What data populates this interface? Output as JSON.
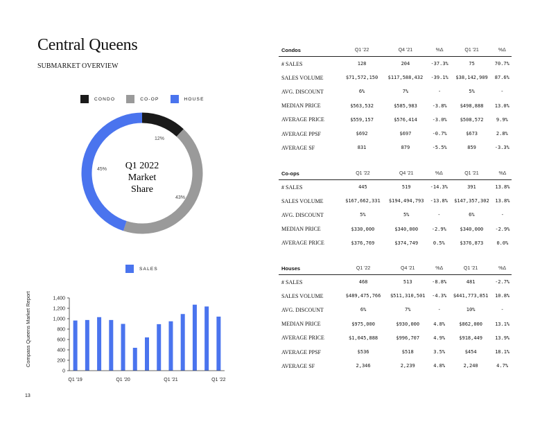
{
  "header": {
    "title": "Central Queens",
    "subtitle": "SUBMARKET OVERVIEW"
  },
  "colors": {
    "condo": "#1a1a1a",
    "coop": "#9a9a9a",
    "house": "#4a74ee",
    "bar": "#4a74ee"
  },
  "donut": {
    "legend": [
      "CONDO",
      "CO-OP",
      "HOUSE"
    ],
    "center_lines": [
      "Q1 2022",
      "Market",
      "Share"
    ],
    "labels": {
      "condo": "12%",
      "coop": "43%",
      "house": "45%"
    }
  },
  "bars": {
    "legend": "SALES"
  },
  "footer": {
    "vertical_label": "Compass   Queens Market Report",
    "page": "13"
  },
  "tables": [
    {
      "name": "Condos",
      "columns": [
        "Q1 '22",
        "Q4 '21",
        "%Δ",
        "Q1 '21",
        "%Δ"
      ],
      "rows": [
        [
          "# SALES",
          "128",
          "204",
          "-37.3%",
          "75",
          "70.7%"
        ],
        [
          "SALES VOLUME",
          "$71,572,150",
          "$117,588,432",
          "-39.1%",
          "$38,142,909",
          "87.6%"
        ],
        [
          "AVG. DISCOUNT",
          "6%",
          "7%",
          "-",
          "5%",
          "-"
        ],
        [
          "MEDIAN PRICE",
          "$563,532",
          "$585,983",
          "-3.8%",
          "$498,888",
          "13.0%"
        ],
        [
          "AVERAGE PRICE",
          "$559,157",
          "$576,414",
          "-3.0%",
          "$508,572",
          "9.9%"
        ],
        [
          "AVERAGE PPSF",
          "$692",
          "$697",
          "-0.7%",
          "$673",
          "2.8%"
        ],
        [
          "AVERAGE SF",
          "831",
          "879",
          "-5.5%",
          "859",
          "-3.3%"
        ]
      ]
    },
    {
      "name": "Co-ops",
      "columns": [
        "Q1 '22",
        "Q4 '21",
        "%Δ",
        "Q1 '21",
        "%Δ"
      ],
      "rows": [
        [
          "# SALES",
          "445",
          "519",
          "-14.3%",
          "391",
          "13.8%"
        ],
        [
          "SALES VOLUME",
          "$167,662,331",
          "$194,494,793",
          "-13.8%",
          "$147,357,302",
          "13.8%"
        ],
        [
          "AVG. DISCOUNT",
          "5%",
          "5%",
          "-",
          "6%",
          "-"
        ],
        [
          "MEDIAN PRICE",
          "$330,000",
          "$340,000",
          "-2.9%",
          "$340,000",
          "-2.9%"
        ],
        [
          "AVERAGE PRICE",
          "$376,769",
          "$374,749",
          "0.5%",
          "$376,873",
          "0.0%"
        ]
      ]
    },
    {
      "name": "Houses",
      "columns": [
        "Q1 '22",
        "Q4 '21",
        "%Δ",
        "Q1 '21",
        "%Δ"
      ],
      "rows": [
        [
          "# SALES",
          "468",
          "513",
          "-8.8%",
          "481",
          "-2.7%"
        ],
        [
          "SALES VOLUME",
          "$489,475,766",
          "$511,310,501",
          "-4.3%",
          "$441,773,851",
          "10.8%"
        ],
        [
          "AVG. DISCOUNT",
          "6%",
          "7%",
          "-",
          "10%",
          "-"
        ],
        [
          "MEDIAN PRICE",
          "$975,000",
          "$930,000",
          "4.8%",
          "$862,000",
          "13.1%"
        ],
        [
          "AVERAGE PRICE",
          "$1,045,888",
          "$996,707",
          "4.9%",
          "$918,449",
          "13.9%"
        ],
        [
          "AVERAGE PPSF",
          "$536",
          "$518",
          "3.5%",
          "$454",
          "18.1%"
        ],
        [
          "AVERAGE SF",
          "2,346",
          "2,239",
          "4.8%",
          "2,240",
          "4.7%"
        ]
      ]
    }
  ],
  "chart_data": [
    {
      "type": "pie",
      "title": "Q1 2022 Market Share",
      "categories": [
        "CONDO",
        "CO-OP",
        "HOUSE"
      ],
      "values": [
        12,
        43,
        45
      ]
    },
    {
      "type": "bar",
      "title": "",
      "series": [
        {
          "name": "SALES",
          "values": [
            965,
            975,
            1030,
            975,
            900,
            440,
            640,
            895,
            950,
            1090,
            1270,
            1235,
            1040
          ]
        }
      ],
      "categories": [
        "Q1 '19",
        "Q2 '19",
        "Q3 '19",
        "Q4 '19",
        "Q1 '20",
        "Q2 '20",
        "Q3 '20",
        "Q4 '20",
        "Q1 '21",
        "Q2 '21",
        "Q3 '21",
        "Q4 '21",
        "Q1 '22"
      ],
      "x_tick_labels": [
        "Q1 '19",
        "Q1 '20",
        "Q1 '21",
        "Q1 '22"
      ],
      "y_tick_labels": [
        "0",
        "200",
        "400",
        "600",
        "800",
        "1,000",
        "1,200",
        "1,400"
      ],
      "ylim": [
        0,
        1400
      ],
      "grid": false,
      "legend": "top"
    }
  ]
}
